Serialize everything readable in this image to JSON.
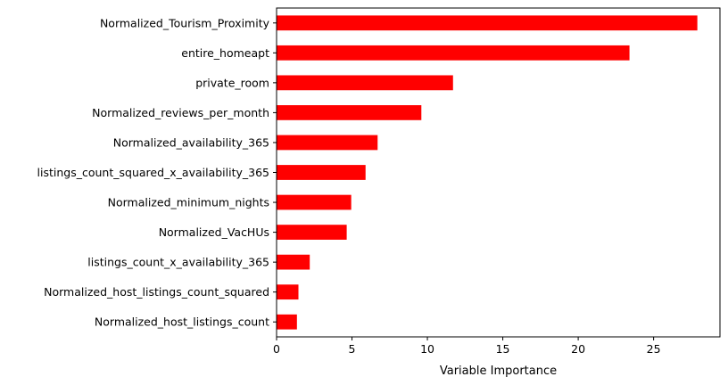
{
  "chart_data": {
    "type": "bar",
    "orientation": "horizontal",
    "title": "",
    "xlabel": "Variable Importance",
    "ylabel": "",
    "xlim": [
      0,
      29.4
    ],
    "xticks": [
      0,
      5,
      10,
      15,
      20,
      25
    ],
    "grid": false,
    "bar_color": "#ff0000",
    "categories": [
      "Normalized_Tourism_Proximity",
      "entire_homeapt",
      "private_room",
      "Normalized_reviews_per_month",
      "Normalized_availability_365",
      "listings_count_squared_x_availability_365",
      "Normalized_minimum_nights",
      "Normalized_VacHUs",
      "listings_count_x_availability_365",
      "Normalized_host_listings_count_squared",
      "Normalized_host_listings_count"
    ],
    "values": [
      27.9,
      23.4,
      11.7,
      9.6,
      6.7,
      5.9,
      4.95,
      4.65,
      2.2,
      1.45,
      1.35
    ]
  }
}
